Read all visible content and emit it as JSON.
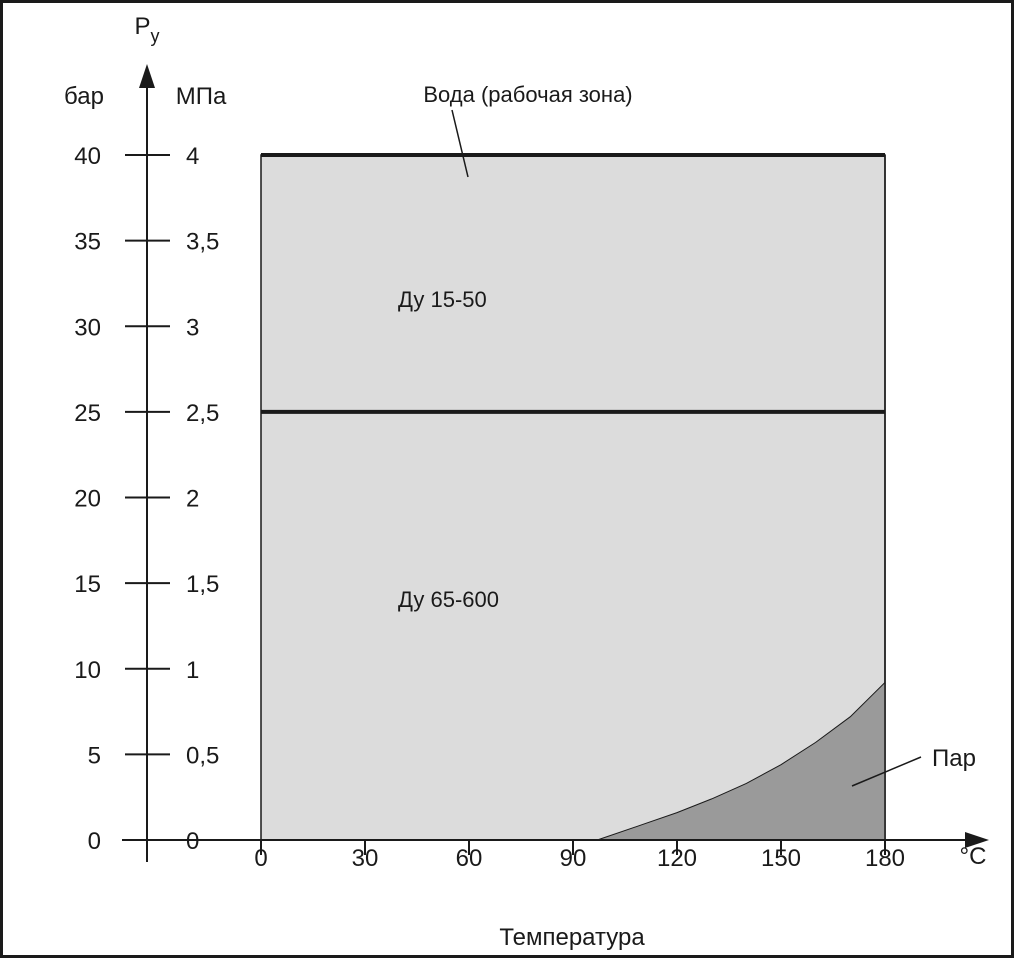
{
  "chart_data": {
    "type": "area",
    "y_axis": {
      "symbol": "P",
      "symbol_subscript": "у",
      "units": [
        "бар",
        "МПа"
      ],
      "range_bar": [
        0,
        40
      ],
      "ticks_bar": [
        "0",
        "5",
        "10",
        "15",
        "20",
        "25",
        "30",
        "35",
        "40"
      ],
      "ticks_mpa": [
        "0",
        "0,5",
        "1",
        "1,5",
        "2",
        "2,5",
        "3",
        "3,5",
        "4"
      ]
    },
    "x_axis": {
      "label": "Температура",
      "unit": "°C",
      "range": [
        0,
        180
      ],
      "ticks": [
        "0",
        "30",
        "60",
        "90",
        "120",
        "150",
        "180"
      ]
    },
    "regions": [
      {
        "label": "Ду 15-50",
        "temp_range": [
          0,
          180
        ],
        "pressure_bar": 40
      },
      {
        "label": "Ду 65-600",
        "temp_range": [
          0,
          180
        ],
        "pressure_bar": 25
      }
    ],
    "boundaries": [
      {
        "name": "Ду 15-50 limit",
        "pressure_bar": 40
      },
      {
        "name": "Ду 65-600 limit",
        "pressure_bar": 25
      }
    ],
    "steam_curve": {
      "label": "Пар",
      "x": [
        97,
        110,
        120,
        130,
        140,
        150,
        160,
        170,
        180
      ],
      "y": [
        0,
        0.9,
        1.6,
        2.4,
        3.3,
        4.4,
        5.7,
        7.2,
        9.2
      ]
    },
    "annotations": {
      "water_zone": "Вода (рабочая зона)"
    },
    "colors": {
      "working_zone": "#dcdcdc",
      "steam_zone": "#9a9a9a",
      "lines": "#1a1a1a"
    }
  }
}
